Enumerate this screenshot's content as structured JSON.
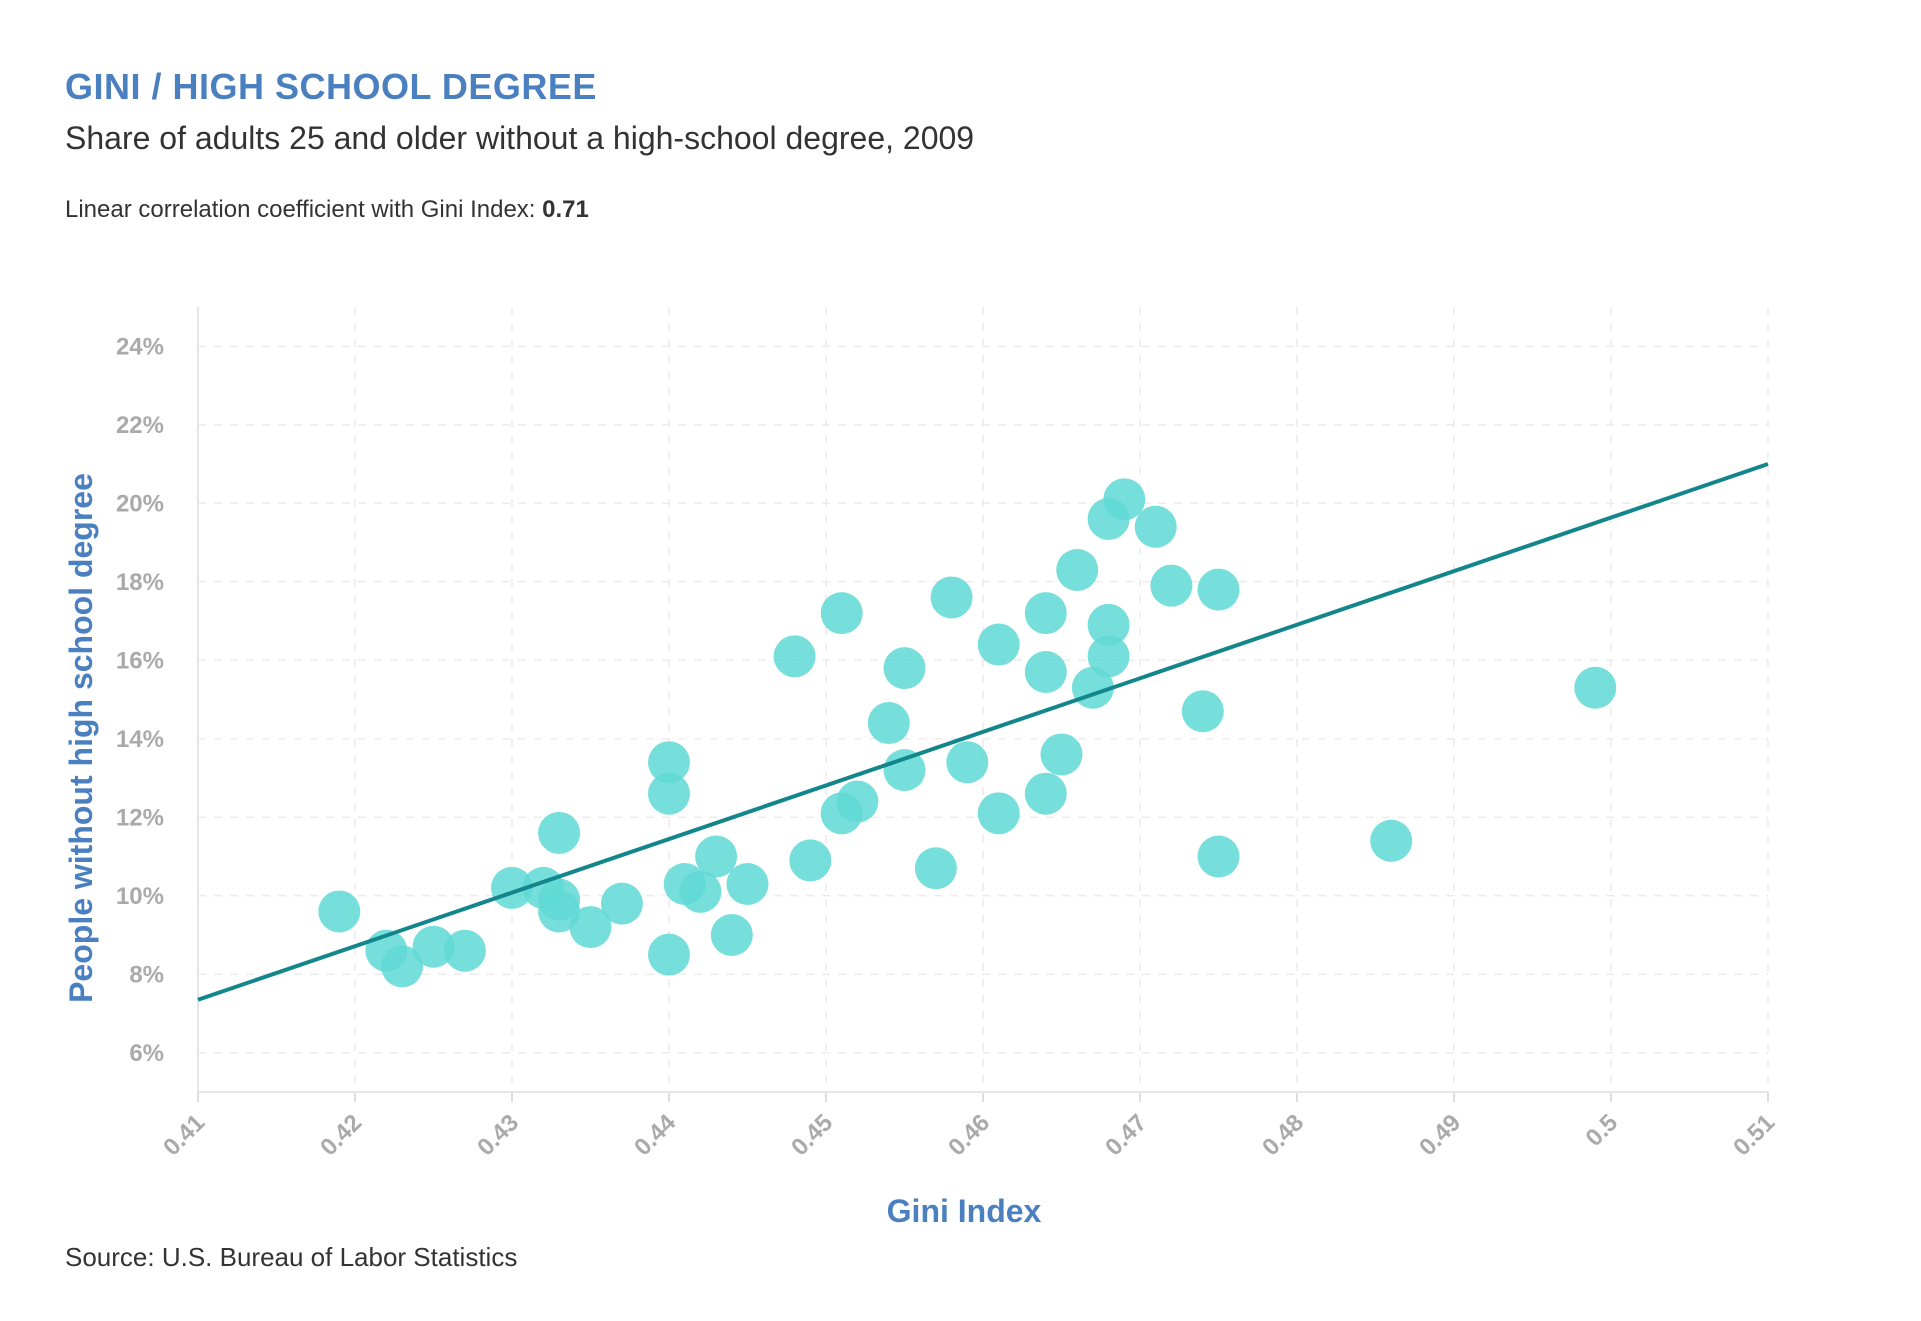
{
  "header": {
    "title": "GINI / HIGH SCHOOL DEGREE",
    "subtitle": "Share of adults 25 and older without a high-school degree, 2009",
    "note_prefix": "Linear correlation coefficient with Gini Index: ",
    "note_value": "0.71"
  },
  "footer": {
    "source": "Source: U.S. Bureau of Labor Statistics"
  },
  "chart_data": {
    "type": "scatter",
    "xlabel": "Gini Index",
    "ylabel": "People without high school degree",
    "xlim": [
      0.41,
      0.51
    ],
    "ylim": [
      5,
      25
    ],
    "x_ticks": [
      0.41,
      0.42,
      0.43,
      0.44,
      0.45,
      0.46,
      0.47,
      0.48,
      0.49,
      0.5,
      0.51
    ],
    "x_tick_labels": [
      "0.41",
      "0.42",
      "0.43",
      "0.44",
      "0.45",
      "0.46",
      "0.47",
      "0.48",
      "0.49",
      "0.5",
      "0.51"
    ],
    "y_ticks": [
      6,
      8,
      10,
      12,
      14,
      16,
      18,
      20,
      22,
      24
    ],
    "y_tick_labels": [
      "6%",
      "8%",
      "10%",
      "12%",
      "14%",
      "16%",
      "18%",
      "20%",
      "22%",
      "24%"
    ],
    "grid": true,
    "point_color": "#5fd9d5",
    "line_color": "#12868a",
    "trend_line": {
      "x": [
        0.41,
        0.51
      ],
      "y": [
        7.35,
        21.0
      ]
    },
    "points": [
      {
        "x": 0.419,
        "y": 9.6
      },
      {
        "x": 0.422,
        "y": 8.6
      },
      {
        "x": 0.423,
        "y": 8.2
      },
      {
        "x": 0.425,
        "y": 8.7
      },
      {
        "x": 0.427,
        "y": 8.6
      },
      {
        "x": 0.43,
        "y": 10.2
      },
      {
        "x": 0.432,
        "y": 10.2
      },
      {
        "x": 0.433,
        "y": 9.9
      },
      {
        "x": 0.433,
        "y": 9.6
      },
      {
        "x": 0.433,
        "y": 11.6
      },
      {
        "x": 0.435,
        "y": 9.2
      },
      {
        "x": 0.437,
        "y": 9.8
      },
      {
        "x": 0.44,
        "y": 8.5
      },
      {
        "x": 0.44,
        "y": 12.6
      },
      {
        "x": 0.44,
        "y": 13.4
      },
      {
        "x": 0.441,
        "y": 10.3
      },
      {
        "x": 0.442,
        "y": 10.1
      },
      {
        "x": 0.443,
        "y": 11.0
      },
      {
        "x": 0.444,
        "y": 9.0
      },
      {
        "x": 0.445,
        "y": 10.3
      },
      {
        "x": 0.448,
        "y": 16.1
      },
      {
        "x": 0.449,
        "y": 10.9
      },
      {
        "x": 0.451,
        "y": 12.1
      },
      {
        "x": 0.451,
        "y": 17.2
      },
      {
        "x": 0.452,
        "y": 12.4
      },
      {
        "x": 0.454,
        "y": 14.4
      },
      {
        "x": 0.455,
        "y": 13.2
      },
      {
        "x": 0.455,
        "y": 15.8
      },
      {
        "x": 0.457,
        "y": 10.7
      },
      {
        "x": 0.458,
        "y": 17.6
      },
      {
        "x": 0.459,
        "y": 13.4
      },
      {
        "x": 0.461,
        "y": 12.1
      },
      {
        "x": 0.461,
        "y": 16.4
      },
      {
        "x": 0.464,
        "y": 12.6
      },
      {
        "x": 0.464,
        "y": 15.7
      },
      {
        "x": 0.464,
        "y": 17.2
      },
      {
        "x": 0.465,
        "y": 13.6
      },
      {
        "x": 0.466,
        "y": 18.3
      },
      {
        "x": 0.467,
        "y": 15.3
      },
      {
        "x": 0.468,
        "y": 16.1
      },
      {
        "x": 0.468,
        "y": 16.9
      },
      {
        "x": 0.468,
        "y": 19.6
      },
      {
        "x": 0.469,
        "y": 20.1
      },
      {
        "x": 0.471,
        "y": 19.4
      },
      {
        "x": 0.472,
        "y": 17.9
      },
      {
        "x": 0.474,
        "y": 14.7
      },
      {
        "x": 0.475,
        "y": 11.0
      },
      {
        "x": 0.475,
        "y": 17.8
      },
      {
        "x": 0.486,
        "y": 11.4
      },
      {
        "x": 0.499,
        "y": 15.3
      }
    ]
  }
}
